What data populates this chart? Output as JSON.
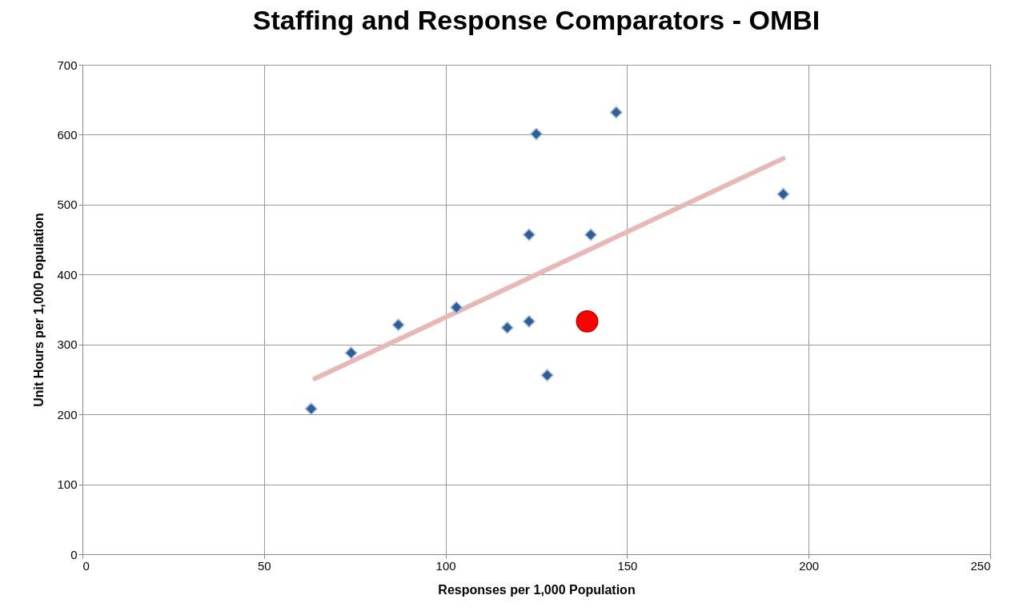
{
  "chart_data": {
    "type": "scatter",
    "title": "Staffing and Response Comparators - OMBI",
    "xlabel": "Responses per 1,000 Population",
    "ylabel": "Unit Hours per 1,000 Population",
    "xlim": [
      0,
      250
    ],
    "xticks": [
      0,
      50,
      100,
      150,
      200,
      250
    ],
    "ylim": [
      0,
      700
    ],
    "yticks": [
      0,
      100,
      200,
      300,
      400,
      500,
      600,
      700
    ],
    "grid": true,
    "series": [
      {
        "type": "line",
        "color": "#e6b9b8",
        "x": [
          64,
          193
        ],
        "values": [
          251,
          566
        ],
        "marker": "none"
      },
      {
        "color": "#2f5d96",
        "marker": "diamond",
        "x": [
          63,
          74,
          87,
          103,
          117,
          123,
          123,
          125,
          128,
          140,
          147,
          193
        ],
        "values": [
          208,
          288,
          328,
          353,
          324,
          333,
          457,
          601,
          256,
          457,
          632,
          515
        ]
      },
      {
        "color": "#ff0000",
        "marker": "circle",
        "x": [
          139
        ],
        "values": [
          333
        ]
      }
    ]
  }
}
